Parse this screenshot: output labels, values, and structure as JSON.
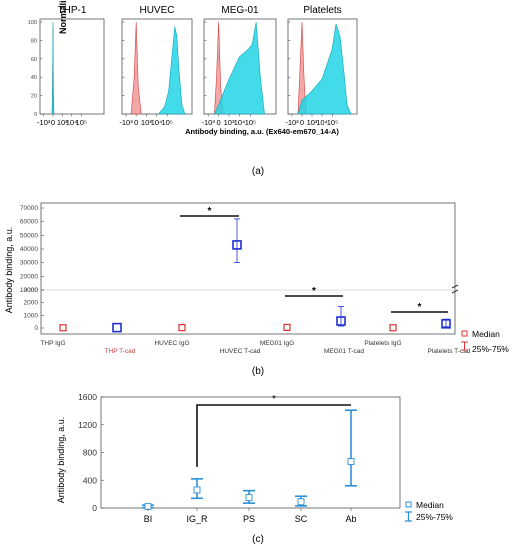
{
  "panel_a": {
    "caption": "(a)",
    "ylabel": "Normalized To Mode",
    "xlabel": "Antibody binding, a.u. (Ex640-em670_14-A)",
    "x_ticks": [
      "-10³",
      "0",
      "10³",
      "10⁴",
      "10⁵"
    ],
    "colors": {
      "control": "#f08a8a",
      "tcad": "#22d3e6"
    }
  },
  "panel_b": {
    "caption": "(b)",
    "ylabel": "Antibody binding, a.u.",
    "legend": {
      "median": "Median",
      "range": "25%-75%"
    },
    "colors": {
      "igg": "#e03030",
      "tcad": "#2030d0"
    }
  },
  "panel_c": {
    "caption": "(c)",
    "ylabel": "Antibody binding, a.u.",
    "legend": {
      "median": "Median",
      "range": "25%-75%"
    },
    "colors": {
      "main": "#2b8fd8"
    }
  },
  "chart_data": [
    {
      "type": "area",
      "panels": [
        "THP-1",
        "HUVEC",
        "MEG-01",
        "Platelets"
      ],
      "x_ticks": [
        "-10³",
        "0",
        "10³",
        "10⁴",
        "10⁵"
      ],
      "xlabel": "Antibody binding, a.u. (Ex640-em670_14-A)",
      "ylabel": "Normalized To Mode",
      "ylim": [
        0,
        100
      ],
      "y_ticks": [
        0,
        20,
        40,
        60,
        80,
        100
      ],
      "series": [
        {
          "panel": "THP-1",
          "group": "control",
          "x": [
            -0.1,
            -0.04,
            0,
            0.04,
            0.1
          ],
          "y": [
            0,
            30,
            95,
            20,
            0
          ]
        },
        {
          "panel": "THP-1",
          "group": "tcad",
          "x": [
            -0.1,
            -0.04,
            0,
            0.04,
            0.1
          ],
          "y": [
            0,
            35,
            100,
            25,
            0
          ]
        },
        {
          "panel": "HUVEC",
          "group": "control",
          "x": [
            -0.5,
            -0.2,
            0,
            0.2,
            0.5
          ],
          "y": [
            0,
            40,
            100,
            30,
            0
          ]
        },
        {
          "panel": "HUVEC",
          "group": "tcad",
          "x": [
            2.2,
            2.8,
            3.2,
            3.5,
            3.8,
            4.0,
            4.2,
            4.5,
            4.8
          ],
          "y": [
            0,
            8,
            25,
            60,
            95,
            85,
            50,
            10,
            0
          ]
        },
        {
          "panel": "MEG-01",
          "group": "control",
          "x": [
            -0.4,
            -0.2,
            0,
            0.2,
            0.4
          ],
          "y": [
            0,
            40,
            100,
            30,
            0
          ]
        },
        {
          "panel": "MEG-01",
          "group": "tcad",
          "x": [
            -0.4,
            0,
            1.0,
            2.0,
            2.8,
            3.2,
            3.6,
            4.0,
            4.4
          ],
          "y": [
            0,
            10,
            38,
            62,
            70,
            75,
            100,
            40,
            0
          ]
        },
        {
          "panel": "Platelets",
          "group": "control",
          "x": [
            -0.4,
            -0.2,
            0,
            0.2,
            0.4
          ],
          "y": [
            0,
            50,
            100,
            40,
            0
          ]
        },
        {
          "panel": "Platelets",
          "group": "tcad",
          "x": [
            -0.4,
            0,
            1.0,
            2.0,
            3.0,
            3.4,
            3.8,
            4.2,
            4.5,
            4.9
          ],
          "y": [
            0,
            15,
            25,
            38,
            70,
            98,
            85,
            45,
            10,
            0
          ]
        }
      ]
    },
    {
      "type": "scatter",
      "categories": [
        "THP IgG",
        "THP T-cad",
        "HUVEC IgG",
        "HUVEC T-cad",
        "MEG01 IgG",
        "MEG01 T-cad",
        "Platelets IgG",
        "Platelets T-cad"
      ],
      "ylabel": "Antibody binding, a.u.",
      "y_ticks": [
        0,
        1000,
        2000,
        3000,
        10000,
        20000,
        30000,
        40000,
        50000,
        60000,
        70000
      ],
      "axis_break": [
        3000,
        10000
      ],
      "series": [
        {
          "name": "Median",
          "groups": [
            "IgG",
            "T-cad",
            "IgG",
            "T-cad",
            "IgG",
            "T-cad",
            "IgG",
            "T-cad"
          ],
          "median": [
            20,
            30,
            30,
            43000,
            50,
            550,
            20,
            330
          ],
          "q25": [
            0,
            0,
            0,
            30000,
            0,
            150,
            0,
            100
          ],
          "q75": [
            40,
            60,
            60,
            62000,
            100,
            1700,
            40,
            700
          ]
        }
      ],
      "significance": [
        {
          "from": "HUVEC IgG",
          "to": "HUVEC T-cad",
          "label": "*"
        },
        {
          "from": "MEG01 IgG",
          "to": "MEG01 T-cad",
          "label": "*"
        },
        {
          "from": "Platelets IgG",
          "to": "Platelets T-cad",
          "label": "*"
        }
      ],
      "legend": [
        "Median",
        "25%-75%"
      ]
    },
    {
      "type": "scatter",
      "categories": [
        "BI",
        "IG_R",
        "PS",
        "SC",
        "Ab"
      ],
      "ylabel": "Antibody binding, a.u.",
      "ylim": [
        0,
        1600
      ],
      "y_ticks": [
        0,
        400,
        800,
        1200,
        1600
      ],
      "series": [
        {
          "name": "Median",
          "median": [
            20,
            260,
            150,
            90,
            670
          ],
          "q25": [
            5,
            140,
            70,
            30,
            320
          ],
          "q75": [
            40,
            420,
            250,
            170,
            1410
          ]
        }
      ],
      "significance": [
        {
          "from": "IG_R",
          "to": "Ab",
          "label": "*"
        }
      ],
      "legend": [
        "Median",
        "25%-75%"
      ]
    }
  ]
}
